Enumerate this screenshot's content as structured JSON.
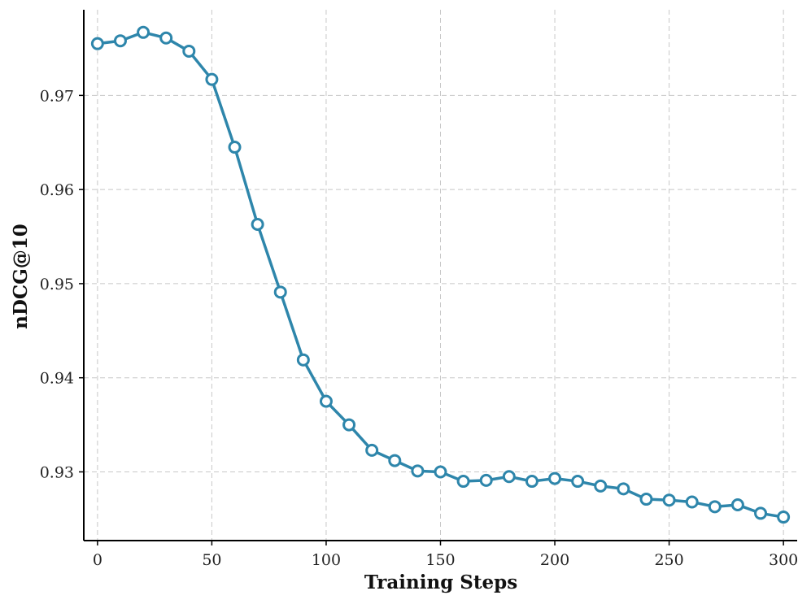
{
  "chart_data": {
    "type": "line",
    "xlabel": "Training Steps",
    "ylabel": "nDCG@10",
    "xlim": [
      -6,
      306
    ],
    "ylim": [
      0.9227,
      0.9791
    ],
    "xticks": [
      0,
      50,
      100,
      150,
      200,
      250,
      300
    ],
    "yticks": [
      0.93,
      0.94,
      0.95,
      0.96,
      0.97
    ],
    "ytick_labels": [
      "0.93",
      "0.94",
      "0.95",
      "0.96",
      "0.97"
    ],
    "grid": true,
    "series": [
      {
        "color": "#2e86ab",
        "marker": "circle-open",
        "x": [
          0,
          10,
          20,
          30,
          40,
          50,
          60,
          70,
          80,
          90,
          100,
          110,
          120,
          130,
          140,
          150,
          160,
          170,
          180,
          190,
          200,
          210,
          220,
          230,
          240,
          250,
          260,
          270,
          280,
          290,
          300
        ],
        "y": [
          0.9755,
          0.9758,
          0.9767,
          0.9761,
          0.9747,
          0.9717,
          0.9645,
          0.9563,
          0.9491,
          0.9419,
          0.9375,
          0.935,
          0.9323,
          0.9312,
          0.9301,
          0.93,
          0.929,
          0.9291,
          0.9295,
          0.929,
          0.9293,
          0.929,
          0.9285,
          0.9282,
          0.9271,
          0.927,
          0.9268,
          0.9263,
          0.9265,
          0.9256,
          0.9252
        ]
      }
    ]
  }
}
